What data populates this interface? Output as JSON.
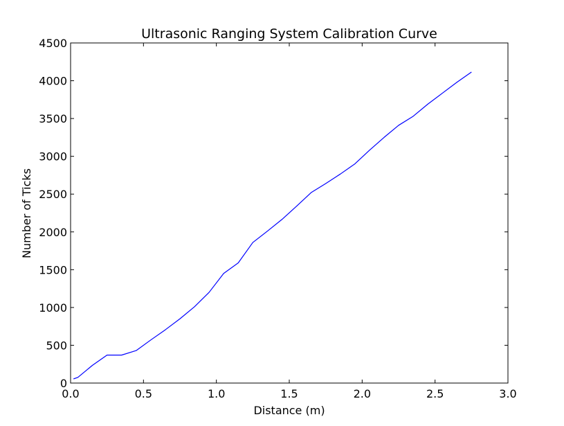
{
  "chart_data": {
    "type": "line",
    "title": "Ultrasonic Ranging System Calibration Curve",
    "xlabel": "Distance (m)",
    "ylabel": "Number of Ticks",
    "xlim": [
      0,
      3.0
    ],
    "ylim": [
      0,
      4500
    ],
    "xticks": [
      0.0,
      0.5,
      1.0,
      1.5,
      2.0,
      2.5,
      3.0
    ],
    "xtick_labels": [
      "0.0",
      "0.5",
      "1.0",
      "1.5",
      "2.0",
      "2.5",
      "3.0"
    ],
    "yticks": [
      0,
      500,
      1000,
      1500,
      2000,
      2500,
      3000,
      3500,
      4000,
      4500
    ],
    "ytick_labels": [
      "0",
      "500",
      "1000",
      "1500",
      "2000",
      "2500",
      "3000",
      "3500",
      "4000",
      "4500"
    ],
    "grid": false,
    "series": [
      {
        "color": "#0000ff",
        "x": [
          0.02,
          0.05,
          0.15,
          0.25,
          0.35,
          0.45,
          0.55,
          0.65,
          0.75,
          0.85,
          0.95,
          1.05,
          1.15,
          1.25,
          1.35,
          1.45,
          1.55,
          1.65,
          1.75,
          1.85,
          1.95,
          2.05,
          2.15,
          2.25,
          2.35,
          2.45,
          2.55,
          2.65,
          2.75
        ],
        "y": [
          55,
          75,
          235,
          370,
          370,
          430,
          570,
          705,
          850,
          1010,
          1200,
          1450,
          1590,
          1860,
          2010,
          2165,
          2340,
          2520,
          2640,
          2765,
          2900,
          3080,
          3250,
          3410,
          3530,
          3690,
          3835,
          3980,
          4115
        ]
      }
    ]
  }
}
